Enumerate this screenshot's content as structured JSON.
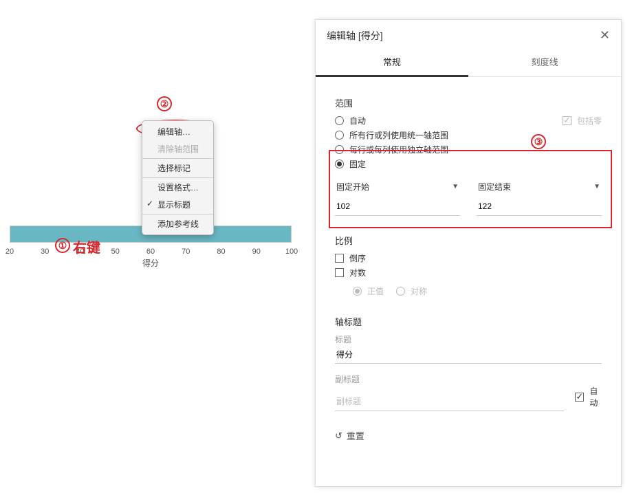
{
  "annotations": {
    "circle1_label": "①",
    "circle1_text": "右键",
    "circle2_label": "②",
    "circle3_label": "③",
    "annot_color": "#d7262c"
  },
  "axis": {
    "ticks": [
      20,
      30,
      40,
      50,
      60,
      70,
      80,
      90,
      100
    ],
    "tick_min": 20,
    "tick_max": 100,
    "title": "得分",
    "band_color": "#6ab7c4"
  },
  "context_menu": {
    "items": [
      {
        "label": "编辑轴…",
        "disabled": false,
        "checked": false
      },
      {
        "label": "清除轴范围",
        "disabled": true,
        "checked": false
      },
      {
        "sep": true
      },
      {
        "label": "选择标记",
        "disabled": false,
        "checked": false
      },
      {
        "sep": true
      },
      {
        "label": "设置格式…",
        "disabled": false,
        "checked": false
      },
      {
        "label": "显示标题",
        "disabled": false,
        "checked": true
      },
      {
        "sep": true
      },
      {
        "label": "添加参考线",
        "disabled": false,
        "checked": false
      }
    ]
  },
  "dialog": {
    "title": "编辑轴 [得分]",
    "tabs": {
      "general": "常规",
      "ticks": "刻度线",
      "active": "general"
    },
    "range": {
      "label": "范围",
      "options": {
        "auto": "自动",
        "uniform": "所有行或列使用统一轴范围",
        "independent": "每行或每列使用独立轴范围",
        "fixed": "固定"
      },
      "selected": "fixed",
      "include_zero_label": "包括零",
      "include_zero_checked": true,
      "fixed_start_label": "固定开始",
      "fixed_end_label": "固定结束",
      "fixed_start_value": "102",
      "fixed_end_value": "122"
    },
    "scale": {
      "label": "比例",
      "reverse_label": "倒序",
      "log_label": "对数",
      "positive_label": "正值",
      "symmetric_label": "对称"
    },
    "axis_titles": {
      "section_label": "轴标题",
      "title_label": "标题",
      "title_value": "得分",
      "subtitle_label": "副标题",
      "subtitle_placeholder": "副标题",
      "auto_label": "自动",
      "auto_checked": true
    },
    "reset_label": "重置"
  }
}
